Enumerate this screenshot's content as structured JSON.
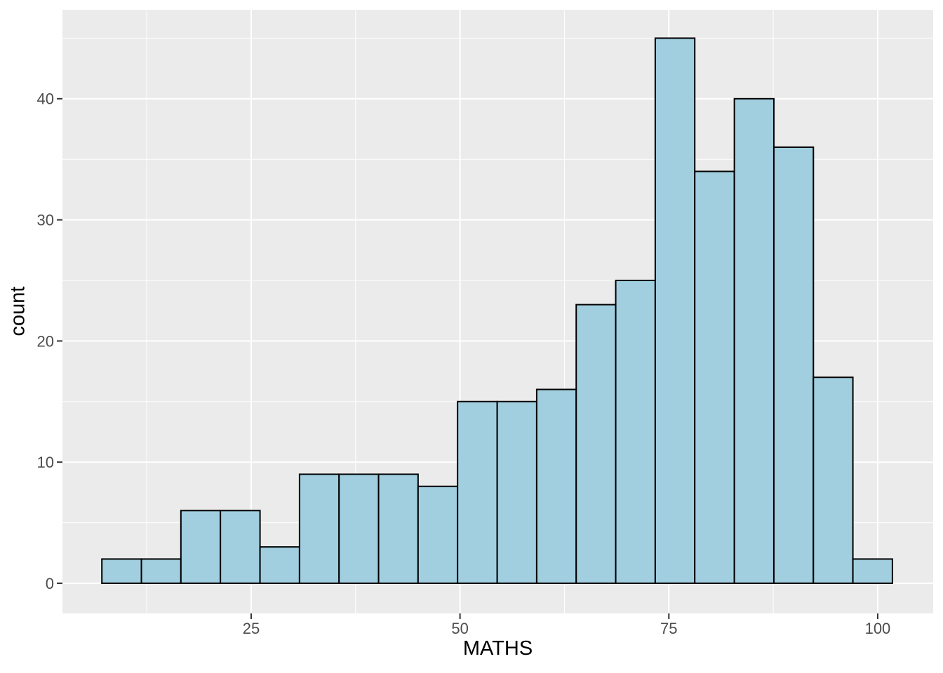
{
  "chart_data": {
    "type": "bar",
    "subtype": "histogram",
    "title": "",
    "xlabel": "MATHS",
    "ylabel": "count",
    "bin_edges": [
      7.13,
      11.86,
      16.59,
      21.32,
      26.06,
      30.79,
      35.52,
      40.25,
      44.98,
      49.71,
      54.45,
      59.18,
      63.91,
      68.64,
      73.37,
      78.1,
      82.84,
      87.57,
      92.3,
      97.03,
      101.76
    ],
    "counts": [
      2,
      2,
      6,
      6,
      3,
      9,
      9,
      9,
      8,
      15,
      15,
      16,
      23,
      25,
      45,
      34,
      40,
      36,
      17,
      2
    ],
    "x_ticks": [
      25,
      50,
      75,
      100
    ],
    "x_tick_labels": [
      "25",
      "50",
      "75",
      "100"
    ],
    "y_ticks": [
      0,
      10,
      20,
      30,
      40
    ],
    "y_tick_labels": [
      "0",
      "10",
      "20",
      "30",
      "40"
    ],
    "x_minor_ticks": [
      12.5,
      37.5,
      62.5,
      87.5
    ],
    "y_minor_ticks": [
      5,
      15,
      25,
      35,
      45
    ],
    "x_domain": [
      2.41,
      106.64
    ],
    "y_domain": [
      -2.49,
      47.34
    ],
    "grid": "on",
    "legend": "none",
    "colors": {
      "bar_fill": "#A1CFE0",
      "bar_stroke": "#000000",
      "panel_bg": "#EBEBEB",
      "grid": "#FFFFFF",
      "tick": "#333333",
      "tick_label": "#4D4D4D",
      "axis_title": "#000000"
    }
  }
}
